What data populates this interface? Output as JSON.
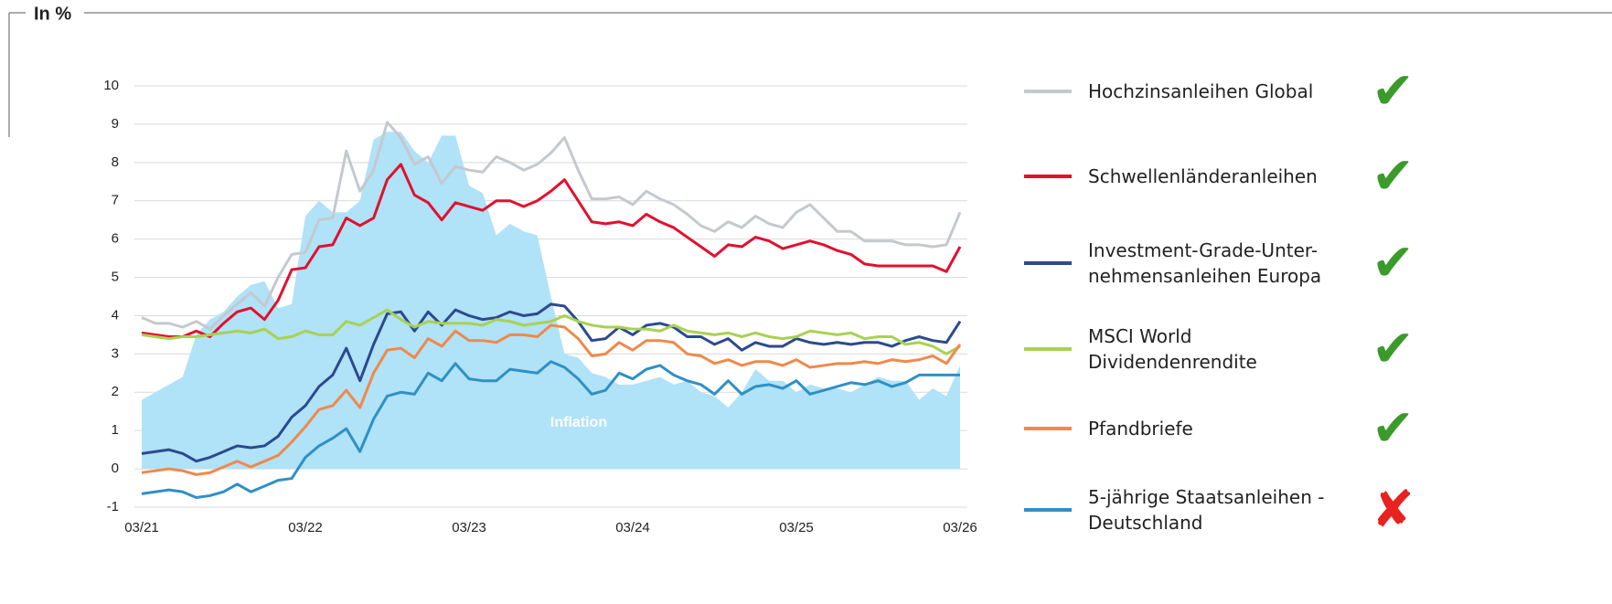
{
  "chart_data": {
    "type": "line",
    "y_label": "In %",
    "categories": [
      "03/21",
      null,
      null,
      null,
      null,
      null,
      null,
      null,
      null,
      null,
      null,
      null,
      "03/22",
      null,
      null,
      null,
      null,
      null,
      null,
      null,
      null,
      null,
      null,
      null,
      "03/23",
      null,
      null,
      null,
      null,
      null,
      null,
      null,
      null,
      null,
      null,
      null,
      "03/24",
      null,
      null,
      null,
      null,
      null,
      null,
      null,
      null,
      null,
      null,
      null,
      "03/25",
      null,
      null,
      null,
      null,
      null,
      null,
      null,
      null,
      null,
      null,
      null,
      "03/26"
    ],
    "ylim": [
      -1,
      10
    ],
    "yticks": [
      -1,
      0,
      1,
      2,
      3,
      4,
      5,
      6,
      7,
      8,
      9,
      10
    ],
    "grid": true,
    "series": [
      {
        "name": "Inflation",
        "kind": "area",
        "color": "#b0e2f8",
        "values": [
          1.8,
          2.0,
          2.2,
          2.4,
          3.5,
          3.9,
          4.1,
          4.5,
          4.8,
          4.9,
          4.2,
          4.3,
          6.6,
          7.0,
          6.7,
          6.7,
          7.0,
          8.6,
          8.8,
          8.8,
          8.3,
          8.0,
          8.7,
          8.7,
          7.4,
          7.2,
          6.1,
          6.4,
          6.2,
          6.1,
          4.5,
          3.0,
          2.9,
          2.5,
          2.4,
          2.2,
          2.2,
          2.3,
          2.4,
          2.2,
          2.3,
          2.0,
          1.9,
          1.6,
          2.0,
          2.6,
          2.3,
          2.3,
          2.0,
          2.2,
          2.1,
          2.1,
          2.0,
          2.2,
          2.4,
          2.3,
          2.3,
          1.8,
          2.1,
          1.9,
          2.7
        ]
      },
      {
        "name": "Hochzinsanleihen Global",
        "color": "#c4c9ce",
        "status": "✔",
        "values": [
          3.95,
          3.8,
          3.8,
          3.7,
          3.85,
          3.65,
          4.0,
          4.3,
          4.6,
          4.25,
          5.0,
          5.6,
          5.65,
          6.5,
          6.55,
          8.3,
          7.25,
          7.8,
          9.05,
          8.65,
          7.95,
          8.15,
          7.45,
          7.9,
          7.8,
          7.75,
          8.15,
          8.0,
          7.8,
          7.95,
          8.25,
          8.65,
          7.8,
          7.05,
          7.05,
          7.1,
          6.9,
          7.25,
          7.05,
          6.9,
          6.65,
          6.35,
          6.2,
          6.45,
          6.3,
          6.6,
          6.4,
          6.3,
          6.7,
          6.9,
          6.55,
          6.2,
          6.2,
          5.95,
          5.95,
          5.95,
          5.85,
          5.85,
          5.8,
          5.85,
          6.7
        ]
      },
      {
        "name": "Schwellenländeranleihen",
        "color": "#e2102f",
        "status": "✔",
        "values": [
          3.55,
          3.5,
          3.45,
          3.45,
          3.6,
          3.45,
          3.8,
          4.1,
          4.2,
          3.9,
          4.4,
          5.2,
          5.25,
          5.8,
          5.85,
          6.55,
          6.35,
          6.55,
          7.55,
          7.95,
          7.15,
          6.95,
          6.5,
          6.95,
          6.85,
          6.75,
          7.0,
          7.0,
          6.85,
          7.0,
          7.25,
          7.55,
          7.0,
          6.45,
          6.4,
          6.45,
          6.35,
          6.65,
          6.45,
          6.3,
          6.05,
          5.8,
          5.55,
          5.85,
          5.8,
          6.05,
          5.95,
          5.75,
          5.85,
          5.95,
          5.85,
          5.7,
          5.6,
          5.35,
          5.3,
          5.3,
          5.3,
          5.3,
          5.3,
          5.15,
          5.8
        ]
      },
      {
        "name": "Investment-Grade-Unter-\nnehmensanleihen Europa",
        "color": "#2c4a8e",
        "status": "✔",
        "values": [
          0.4,
          0.45,
          0.5,
          0.4,
          0.2,
          0.3,
          0.45,
          0.6,
          0.55,
          0.6,
          0.85,
          1.35,
          1.65,
          2.15,
          2.45,
          3.15,
          2.3,
          3.25,
          4.05,
          4.1,
          3.6,
          4.1,
          3.75,
          4.15,
          4.0,
          3.9,
          3.95,
          4.1,
          4.0,
          4.05,
          4.3,
          4.25,
          3.85,
          3.35,
          3.4,
          3.7,
          3.5,
          3.75,
          3.8,
          3.7,
          3.45,
          3.45,
          3.25,
          3.4,
          3.1,
          3.3,
          3.2,
          3.2,
          3.4,
          3.3,
          3.25,
          3.3,
          3.25,
          3.3,
          3.3,
          3.2,
          3.35,
          3.45,
          3.35,
          3.3,
          3.85
        ]
      },
      {
        "name": "MSCI World\nDividendenrendite",
        "color": "#a9d152",
        "status": "✔",
        "values": [
          3.5,
          3.45,
          3.4,
          3.45,
          3.45,
          3.5,
          3.55,
          3.6,
          3.55,
          3.65,
          3.4,
          3.45,
          3.6,
          3.5,
          3.5,
          3.85,
          3.75,
          3.95,
          4.15,
          3.9,
          3.7,
          3.85,
          3.8,
          3.8,
          3.8,
          3.75,
          3.9,
          3.85,
          3.75,
          3.8,
          3.85,
          4.0,
          3.85,
          3.75,
          3.7,
          3.7,
          3.65,
          3.65,
          3.6,
          3.75,
          3.6,
          3.55,
          3.5,
          3.55,
          3.45,
          3.55,
          3.45,
          3.4,
          3.45,
          3.6,
          3.55,
          3.5,
          3.55,
          3.4,
          3.45,
          3.45,
          3.25,
          3.3,
          3.2,
          3.0,
          3.2
        ]
      },
      {
        "name": "Pfandbriefe",
        "color": "#f0894a",
        "status": "✔",
        "values": [
          -0.1,
          -0.05,
          0.0,
          -0.05,
          -0.15,
          -0.1,
          0.05,
          0.2,
          0.05,
          0.2,
          0.35,
          0.7,
          1.1,
          1.55,
          1.65,
          2.05,
          1.6,
          2.5,
          3.1,
          3.15,
          2.9,
          3.4,
          3.2,
          3.6,
          3.35,
          3.35,
          3.3,
          3.5,
          3.5,
          3.45,
          3.75,
          3.7,
          3.4,
          2.95,
          3.0,
          3.3,
          3.1,
          3.35,
          3.35,
          3.3,
          3.0,
          2.95,
          2.75,
          2.85,
          2.7,
          2.8,
          2.8,
          2.7,
          2.85,
          2.65,
          2.7,
          2.75,
          2.75,
          2.8,
          2.75,
          2.85,
          2.8,
          2.85,
          2.95,
          2.75,
          3.25
        ]
      },
      {
        "name": "5-jährige Staatsanleihen -\nDeutschland",
        "color": "#2f90c4",
        "status": "✘",
        "values": [
          -0.65,
          -0.6,
          -0.55,
          -0.6,
          -0.75,
          -0.7,
          -0.6,
          -0.4,
          -0.6,
          -0.45,
          -0.3,
          -0.25,
          0.3,
          0.6,
          0.8,
          1.05,
          0.45,
          1.3,
          1.9,
          2.0,
          1.95,
          2.5,
          2.3,
          2.75,
          2.35,
          2.3,
          2.3,
          2.6,
          2.55,
          2.5,
          2.8,
          2.65,
          2.35,
          1.95,
          2.05,
          2.5,
          2.35,
          2.6,
          2.7,
          2.45,
          2.3,
          2.2,
          1.95,
          2.3,
          1.95,
          2.15,
          2.2,
          2.1,
          2.3,
          1.95,
          2.05,
          2.15,
          2.25,
          2.2,
          2.3,
          2.15,
          2.25,
          2.45,
          2.45,
          2.45,
          2.45
        ]
      }
    ]
  }
}
